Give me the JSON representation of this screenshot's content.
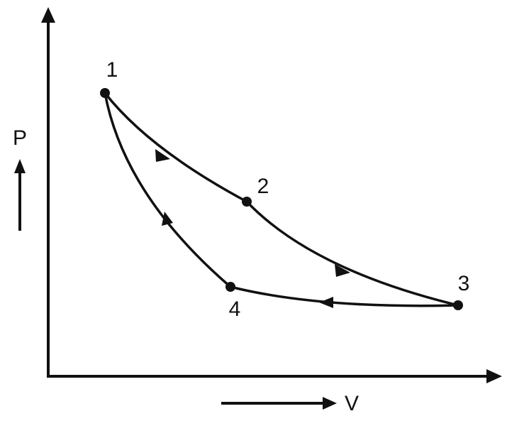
{
  "axes": {
    "y_label": "P",
    "x_label": "V"
  },
  "nodes": [
    {
      "label": "1"
    },
    {
      "label": "2"
    },
    {
      "label": "3"
    },
    {
      "label": "4"
    }
  ]
}
